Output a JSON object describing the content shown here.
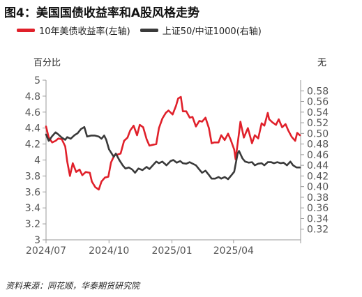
{
  "title": "图4：美国国债收益率和A股风格走势",
  "legend": [
    {
      "label": "10年美债收益率(左轴)",
      "color": "#e0202a"
    },
    {
      "label": "上证50/中证1000(右轴)",
      "color": "#3a3a3a"
    }
  ],
  "left_unit": "百分比",
  "right_unit": "无",
  "source": "资料来源：同花顺，华泰期货研究院",
  "chart_data": {
    "type": "line",
    "title": "美国国债收益率和A股风格走势",
    "xlabel": "",
    "ylabel": "百分比",
    "y2label": "无",
    "x_ticks": [
      "2024/07",
      "2024/10",
      "2025/01",
      "2025/04"
    ],
    "y_left": {
      "min": 3,
      "max": 5,
      "ticks": [
        3,
        3.2,
        3.4,
        3.6,
        3.8,
        4,
        4.2,
        4.4,
        4.6,
        4.8,
        5
      ]
    },
    "y_right": {
      "min": 0.3,
      "max": 0.6,
      "ticks": [
        0.32,
        0.34,
        0.36,
        0.38,
        0.4,
        0.42,
        0.44,
        0.46,
        0.48,
        0.5,
        0.52,
        0.54,
        0.56,
        0.58
      ]
    },
    "grid": false,
    "legend_position": "top",
    "series": [
      {
        "name": "10年美债收益率(左轴)",
        "axis": "left",
        "color": "#e0202a",
        "points": [
          [
            "2024-07-01",
            4.42
          ],
          [
            "2024-07-05",
            4.28
          ],
          [
            "2024-07-10",
            4.22
          ],
          [
            "2024-07-15",
            4.24
          ],
          [
            "2024-07-19",
            4.27
          ],
          [
            "2024-07-24",
            4.26
          ],
          [
            "2024-07-29",
            4.17
          ],
          [
            "2024-08-01",
            3.98
          ],
          [
            "2024-08-05",
            3.8
          ],
          [
            "2024-08-09",
            3.96
          ],
          [
            "2024-08-14",
            3.85
          ],
          [
            "2024-08-19",
            3.88
          ],
          [
            "2024-08-23",
            3.81
          ],
          [
            "2024-08-28",
            3.85
          ],
          [
            "2024-09-03",
            3.84
          ],
          [
            "2024-09-06",
            3.73
          ],
          [
            "2024-09-11",
            3.66
          ],
          [
            "2024-09-16",
            3.63
          ],
          [
            "2024-09-20",
            3.73
          ],
          [
            "2024-09-25",
            3.78
          ],
          [
            "2024-09-30",
            3.79
          ],
          [
            "2024-10-04",
            3.97
          ],
          [
            "2024-10-09",
            4.06
          ],
          [
            "2024-10-14",
            4.07
          ],
          [
            "2024-10-18",
            4.08
          ],
          [
            "2024-10-23",
            4.24
          ],
          [
            "2024-10-28",
            4.28
          ],
          [
            "2024-11-01",
            4.37
          ],
          [
            "2024-11-06",
            4.43
          ],
          [
            "2024-11-11",
            4.31
          ],
          [
            "2024-11-15",
            4.44
          ],
          [
            "2024-11-20",
            4.41
          ],
          [
            "2024-11-25",
            4.26
          ],
          [
            "2024-11-29",
            4.18
          ],
          [
            "2024-12-04",
            4.19
          ],
          [
            "2024-12-09",
            4.2
          ],
          [
            "2024-12-13",
            4.4
          ],
          [
            "2024-12-18",
            4.52
          ],
          [
            "2024-12-23",
            4.59
          ],
          [
            "2024-12-27",
            4.62
          ],
          [
            "2025-01-02",
            4.57
          ],
          [
            "2025-01-07",
            4.68
          ],
          [
            "2025-01-10",
            4.77
          ],
          [
            "2025-01-14",
            4.79
          ],
          [
            "2025-01-17",
            4.61
          ],
          [
            "2025-01-22",
            4.61
          ],
          [
            "2025-01-27",
            4.53
          ],
          [
            "2025-01-31",
            4.54
          ],
          [
            "2025-02-05",
            4.42
          ],
          [
            "2025-02-10",
            4.49
          ],
          [
            "2025-02-14",
            4.48
          ],
          [
            "2025-02-19",
            4.53
          ],
          [
            "2025-02-24",
            4.4
          ],
          [
            "2025-02-28",
            4.21
          ],
          [
            "2025-03-04",
            4.22
          ],
          [
            "2025-03-10",
            4.22
          ],
          [
            "2025-03-14",
            4.31
          ],
          [
            "2025-03-19",
            4.25
          ],
          [
            "2025-03-24",
            4.33
          ],
          [
            "2025-03-28",
            4.25
          ],
          [
            "2025-04-02",
            4.13
          ],
          [
            "2025-04-04",
            4.01
          ],
          [
            "2025-04-09",
            4.34
          ],
          [
            "2025-04-11",
            4.48
          ],
          [
            "2025-04-16",
            4.28
          ],
          [
            "2025-04-22",
            4.4
          ],
          [
            "2025-04-28",
            4.21
          ],
          [
            "2025-05-02",
            4.31
          ],
          [
            "2025-05-07",
            4.27
          ],
          [
            "2025-05-12",
            4.46
          ],
          [
            "2025-05-16",
            4.43
          ],
          [
            "2025-05-21",
            4.59
          ],
          [
            "2025-05-23",
            4.51
          ],
          [
            "2025-05-28",
            4.47
          ],
          [
            "2025-06-02",
            4.44
          ],
          [
            "2025-06-06",
            4.51
          ],
          [
            "2025-06-11",
            4.41
          ],
          [
            "2025-06-16",
            4.45
          ],
          [
            "2025-06-20",
            4.37
          ],
          [
            "2025-06-25",
            4.29
          ],
          [
            "2025-06-30",
            4.24
          ],
          [
            "2025-07-03",
            4.34
          ],
          [
            "2025-07-07",
            4.31
          ]
        ]
      },
      {
        "name": "上证50/中证1000(右轴)",
        "axis": "right",
        "color": "#3a3a3a",
        "points": [
          [
            "2024-07-01",
            0.498
          ],
          [
            "2024-07-05",
            0.486
          ],
          [
            "2024-07-10",
            0.495
          ],
          [
            "2024-07-15",
            0.502
          ],
          [
            "2024-07-19",
            0.498
          ],
          [
            "2024-07-24",
            0.492
          ],
          [
            "2024-07-29",
            0.488
          ],
          [
            "2024-08-01",
            0.493
          ],
          [
            "2024-08-06",
            0.49
          ],
          [
            "2024-08-12",
            0.497
          ],
          [
            "2024-08-16",
            0.5
          ],
          [
            "2024-08-21",
            0.508
          ],
          [
            "2024-08-26",
            0.512
          ],
          [
            "2024-08-30",
            0.494
          ],
          [
            "2024-09-05",
            0.496
          ],
          [
            "2024-09-10",
            0.496
          ],
          [
            "2024-09-16",
            0.494
          ],
          [
            "2024-09-20",
            0.49
          ],
          [
            "2024-09-24",
            0.496
          ],
          [
            "2024-09-27",
            0.488
          ],
          [
            "2024-10-01",
            0.47
          ],
          [
            "2024-10-08",
            0.456
          ],
          [
            "2024-10-11",
            0.462
          ],
          [
            "2024-10-16",
            0.45
          ],
          [
            "2024-10-21",
            0.44
          ],
          [
            "2024-10-25",
            0.434
          ],
          [
            "2024-10-30",
            0.436
          ],
          [
            "2024-11-04",
            0.432
          ],
          [
            "2024-11-08",
            0.426
          ],
          [
            "2024-11-13",
            0.434
          ],
          [
            "2024-11-19",
            0.431
          ],
          [
            "2024-11-25",
            0.437
          ],
          [
            "2024-11-29",
            0.433
          ],
          [
            "2024-12-04",
            0.44
          ],
          [
            "2024-12-09",
            0.447
          ],
          [
            "2024-12-13",
            0.444
          ],
          [
            "2024-12-18",
            0.447
          ],
          [
            "2024-12-24",
            0.44
          ],
          [
            "2024-12-30",
            0.448
          ],
          [
            "2025-01-03",
            0.45
          ],
          [
            "2025-01-08",
            0.445
          ],
          [
            "2025-01-13",
            0.448
          ],
          [
            "2025-01-17",
            0.444
          ],
          [
            "2025-01-22",
            0.443
          ],
          [
            "2025-01-27",
            0.446
          ],
          [
            "2025-02-05",
            0.44
          ],
          [
            "2025-02-10",
            0.432
          ],
          [
            "2025-02-14",
            0.426
          ],
          [
            "2025-02-19",
            0.43
          ],
          [
            "2025-02-24",
            0.422
          ],
          [
            "2025-02-28",
            0.415
          ],
          [
            "2025-03-05",
            0.415
          ],
          [
            "2025-03-10",
            0.418
          ],
          [
            "2025-03-14",
            0.415
          ],
          [
            "2025-03-19",
            0.418
          ],
          [
            "2025-03-24",
            0.414
          ],
          [
            "2025-03-28",
            0.42
          ],
          [
            "2025-04-02",
            0.428
          ],
          [
            "2025-04-07",
            0.462
          ],
          [
            "2025-04-09",
            0.467
          ],
          [
            "2025-04-14",
            0.453
          ],
          [
            "2025-04-18",
            0.447
          ],
          [
            "2025-04-23",
            0.445
          ],
          [
            "2025-04-28",
            0.446
          ],
          [
            "2025-05-02",
            0.44
          ],
          [
            "2025-05-07",
            0.443
          ],
          [
            "2025-05-12",
            0.444
          ],
          [
            "2025-05-16",
            0.44
          ],
          [
            "2025-05-21",
            0.446
          ],
          [
            "2025-05-26",
            0.446
          ],
          [
            "2025-05-30",
            0.444
          ],
          [
            "2025-06-04",
            0.446
          ],
          [
            "2025-06-09",
            0.444
          ],
          [
            "2025-06-13",
            0.445
          ],
          [
            "2025-06-18",
            0.44
          ],
          [
            "2025-06-23",
            0.447
          ],
          [
            "2025-06-27",
            0.44
          ],
          [
            "2025-07-02",
            0.436
          ],
          [
            "2025-07-07",
            0.436
          ]
        ]
      }
    ]
  }
}
